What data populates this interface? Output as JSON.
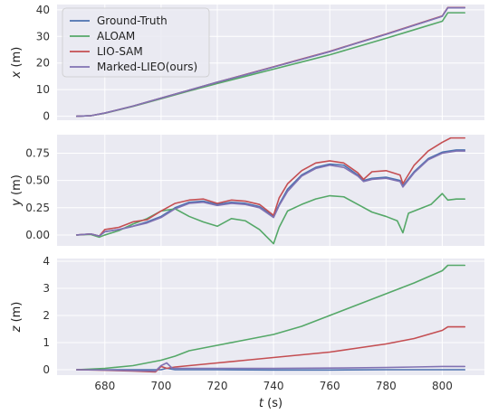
{
  "chart_data": [
    {
      "type": "line",
      "ylabel_var": "x",
      "ylabel_unit": " (m)",
      "ylim": [
        -1.5,
        42
      ],
      "yticks": [
        0,
        10,
        20,
        30,
        40
      ],
      "xlim": [
        663,
        815
      ],
      "xticks": [
        680,
        700,
        720,
        740,
        760,
        780,
        800
      ],
      "grid": true,
      "legend_position": "top-left",
      "series": [
        {
          "name": "Ground-Truth",
          "color": "#4c72b0",
          "x": [
            670,
            675,
            680,
            690,
            700,
            710,
            720,
            730,
            740,
            750,
            760,
            770,
            780,
            790,
            800,
            802,
            808
          ],
          "y": [
            0,
            0.2,
            1.2,
            3.8,
            6.8,
            9.8,
            12.8,
            15.6,
            18.5,
            21.4,
            24.3,
            27.6,
            30.8,
            34.2,
            37.6,
            40.8,
            40.8
          ]
        },
        {
          "name": "ALOAM",
          "color": "#55a868",
          "x": [
            670,
            675,
            680,
            690,
            700,
            710,
            720,
            730,
            740,
            750,
            760,
            770,
            780,
            790,
            800,
            802,
            808
          ],
          "y": [
            0,
            0.2,
            1.1,
            3.7,
            6.6,
            9.5,
            12.3,
            15.0,
            17.7,
            20.4,
            23.1,
            26.2,
            29.3,
            32.5,
            35.7,
            38.9,
            38.9
          ]
        },
        {
          "name": "LIO-SAM",
          "color": "#c44e52",
          "x": [
            670,
            675,
            680,
            690,
            700,
            710,
            720,
            730,
            740,
            750,
            760,
            770,
            780,
            790,
            800,
            802,
            808
          ],
          "y": [
            0,
            0.2,
            1.2,
            3.8,
            6.8,
            9.8,
            12.8,
            15.7,
            18.6,
            21.5,
            24.4,
            27.7,
            30.9,
            34.3,
            37.7,
            40.9,
            40.9
          ]
        },
        {
          "name": "Marked-LIEO(ours)",
          "color": "#8172b3",
          "x": [
            670,
            675,
            680,
            690,
            700,
            710,
            720,
            730,
            740,
            750,
            760,
            770,
            780,
            790,
            800,
            802,
            808
          ],
          "y": [
            0,
            0.2,
            1.2,
            3.8,
            6.8,
            9.8,
            12.8,
            15.6,
            18.5,
            21.4,
            24.3,
            27.6,
            30.8,
            34.2,
            37.6,
            40.8,
            40.8
          ]
        }
      ]
    },
    {
      "type": "line",
      "ylabel_var": "y",
      "ylabel_unit": " (m)",
      "ylim": [
        -0.1,
        0.92
      ],
      "yticks": [
        0.0,
        0.25,
        0.5,
        0.75
      ],
      "ytick_labels": [
        "0.00",
        "0.25",
        "0.50",
        "0.75"
      ],
      "xlim": [
        663,
        815
      ],
      "xticks": [
        680,
        700,
        720,
        740,
        760,
        780,
        800
      ],
      "grid": true,
      "series": [
        {
          "name": "Ground-Truth",
          "color": "#4c72b0",
          "x": [
            670,
            675,
            678,
            680,
            685,
            690,
            695,
            700,
            705,
            710,
            715,
            720,
            725,
            730,
            735,
            740,
            742,
            745,
            750,
            755,
            760,
            765,
            770,
            772,
            775,
            780,
            785,
            786,
            790,
            795,
            800,
            805,
            808
          ],
          "y": [
            0,
            0.01,
            -0.01,
            0.03,
            0.05,
            0.08,
            0.12,
            0.17,
            0.25,
            0.3,
            0.31,
            0.28,
            0.3,
            0.29,
            0.26,
            0.17,
            0.28,
            0.42,
            0.55,
            0.62,
            0.65,
            0.64,
            0.55,
            0.5,
            0.52,
            0.53,
            0.5,
            0.45,
            0.58,
            0.7,
            0.76,
            0.78,
            0.78
          ]
        },
        {
          "name": "ALOAM",
          "color": "#55a868",
          "x": [
            670,
            675,
            678,
            680,
            685,
            690,
            695,
            700,
            705,
            710,
            715,
            720,
            725,
            730,
            735,
            740,
            742,
            745,
            750,
            755,
            760,
            765,
            770,
            775,
            780,
            784,
            786,
            788,
            792,
            796,
            800,
            802,
            805,
            808
          ],
          "y": [
            0,
            0.005,
            -0.02,
            0.0,
            0.04,
            0.1,
            0.15,
            0.22,
            0.24,
            0.17,
            0.12,
            0.08,
            0.15,
            0.13,
            0.05,
            -0.08,
            0.07,
            0.22,
            0.28,
            0.33,
            0.36,
            0.35,
            0.28,
            0.21,
            0.17,
            0.13,
            0.02,
            0.2,
            0.24,
            0.28,
            0.38,
            0.32,
            0.33,
            0.33
          ]
        },
        {
          "name": "LIO-SAM",
          "color": "#c44e52",
          "x": [
            670,
            675,
            678,
            680,
            685,
            690,
            695,
            700,
            705,
            710,
            715,
            720,
            725,
            730,
            735,
            740,
            742,
            745,
            750,
            755,
            760,
            765,
            770,
            772,
            775,
            780,
            785,
            786,
            790,
            795,
            800,
            803,
            808
          ],
          "y": [
            0,
            0.01,
            -0.01,
            0.05,
            0.07,
            0.12,
            0.14,
            0.22,
            0.29,
            0.32,
            0.33,
            0.29,
            0.32,
            0.31,
            0.28,
            0.18,
            0.34,
            0.47,
            0.59,
            0.66,
            0.68,
            0.66,
            0.57,
            0.51,
            0.58,
            0.59,
            0.55,
            0.47,
            0.64,
            0.77,
            0.85,
            0.89,
            0.89
          ]
        },
        {
          "name": "Marked-LIEO(ours)",
          "color": "#8172b3",
          "x": [
            670,
            675,
            678,
            680,
            685,
            690,
            695,
            700,
            705,
            710,
            715,
            720,
            725,
            730,
            735,
            740,
            742,
            745,
            750,
            755,
            760,
            765,
            770,
            772,
            775,
            780,
            785,
            786,
            790,
            795,
            800,
            805,
            808
          ],
          "y": [
            0,
            0.01,
            -0.01,
            0.03,
            0.05,
            0.08,
            0.11,
            0.16,
            0.24,
            0.29,
            0.3,
            0.27,
            0.29,
            0.28,
            0.25,
            0.16,
            0.27,
            0.4,
            0.54,
            0.61,
            0.64,
            0.62,
            0.54,
            0.49,
            0.51,
            0.52,
            0.49,
            0.44,
            0.57,
            0.69,
            0.75,
            0.77,
            0.77
          ]
        }
      ]
    },
    {
      "type": "line",
      "ylabel_var": "z",
      "ylabel_unit": " (m)",
      "xlabel_var": "t",
      "xlabel_unit": " (s)",
      "ylim": [
        -0.2,
        4.1
      ],
      "yticks": [
        0,
        1,
        2,
        3,
        4
      ],
      "xlim": [
        663,
        815
      ],
      "xticks": [
        680,
        700,
        720,
        740,
        760,
        780,
        800
      ],
      "grid": true,
      "series": [
        {
          "name": "Ground-Truth",
          "color": "#4c72b0",
          "x": [
            670,
            680,
            690,
            700,
            702,
            705,
            720,
            740,
            760,
            780,
            800,
            808
          ],
          "y": [
            0,
            0,
            0,
            0.0,
            0.05,
            0.0,
            0.0,
            -0.01,
            -0.01,
            0.0,
            0.0,
            0.0
          ]
        },
        {
          "name": "ALOAM",
          "color": "#55a868",
          "x": [
            670,
            680,
            690,
            700,
            705,
            710,
            720,
            730,
            740,
            750,
            760,
            770,
            780,
            790,
            800,
            802,
            808
          ],
          "y": [
            0,
            0.05,
            0.15,
            0.35,
            0.5,
            0.7,
            0.9,
            1.1,
            1.3,
            1.6,
            2.0,
            2.4,
            2.8,
            3.2,
            3.65,
            3.85,
            3.85
          ]
        },
        {
          "name": "LIO-SAM",
          "color": "#c44e52",
          "x": [
            670,
            680,
            690,
            698,
            700,
            702,
            705,
            710,
            720,
            730,
            740,
            750,
            760,
            770,
            780,
            790,
            800,
            802,
            808
          ],
          "y": [
            0,
            -0.02,
            -0.05,
            -0.08,
            0.12,
            0.05,
            0.1,
            0.15,
            0.25,
            0.35,
            0.45,
            0.55,
            0.65,
            0.8,
            0.95,
            1.15,
            1.45,
            1.58,
            1.58
          ]
        },
        {
          "name": "Marked-LIEO(ours)",
          "color": "#8172b3",
          "x": [
            670,
            680,
            690,
            698,
            700,
            702,
            704,
            710,
            720,
            740,
            760,
            780,
            790,
            800,
            808
          ],
          "y": [
            0,
            -0.01,
            -0.03,
            -0.05,
            0.15,
            0.25,
            0.05,
            0.05,
            0.05,
            0.05,
            0.06,
            0.08,
            0.1,
            0.12,
            0.12
          ]
        }
      ]
    }
  ]
}
